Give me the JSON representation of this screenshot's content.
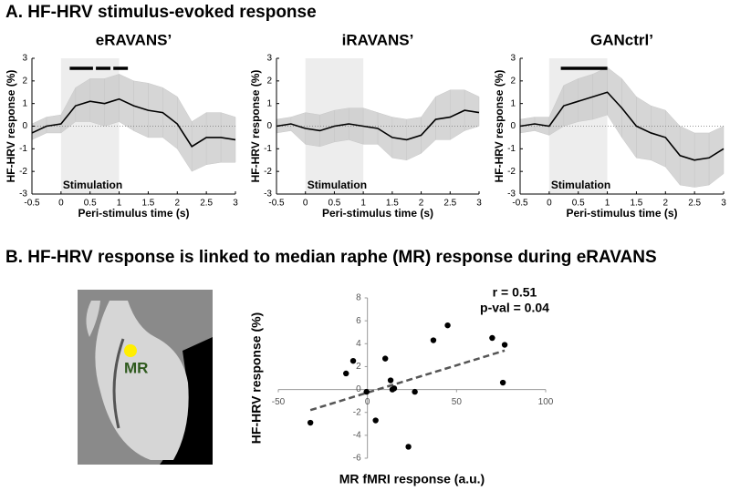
{
  "panels": [
    "A. HF-HRV stimulus-evoked response",
    "B. HF-HRV response is linked to median raphe (MR) response during eRAVANS"
  ],
  "image_label": "MR",
  "chart_data": [
    {
      "type": "band-line",
      "title": "eRAVANS’",
      "xlabel": "Peri-stimulus time (s)",
      "ylabel": "HF-HRV response (%)",
      "annotation": "Stimulation",
      "xlim": [
        -0.5,
        3
      ],
      "xticks": [
        -0.5,
        0,
        0.5,
        1,
        1.5,
        2,
        2.5,
        3
      ],
      "ylim": [
        -3,
        3
      ],
      "yticks": [
        -3,
        -2,
        -1,
        0,
        1,
        2,
        3
      ],
      "stim_window": [
        0,
        1
      ],
      "sig_segments": [
        [
          0.15,
          0.55
        ],
        [
          0.6,
          0.85
        ],
        [
          0.9,
          1.15
        ]
      ],
      "color": "#000000",
      "band_color": "#c8c8c8",
      "x": [
        -0.5,
        -0.25,
        0,
        0.25,
        0.5,
        0.75,
        1,
        1.25,
        1.5,
        1.75,
        2,
        2.25,
        2.5,
        2.75,
        3
      ],
      "values": [
        -0.3,
        0,
        0.1,
        0.9,
        1.1,
        1.0,
        1.2,
        0.9,
        0.7,
        0.6,
        0.1,
        -0.9,
        -0.5,
        -0.5,
        -0.6
      ],
      "upper": [
        0.1,
        0.4,
        0.5,
        1.7,
        2.1,
        2.1,
        2.3,
        2.0,
        1.9,
        1.7,
        1.3,
        0.2,
        0.6,
        0.6,
        0.4
      ],
      "lower": [
        -0.6,
        -0.3,
        -0.3,
        0.2,
        0.2,
        0,
        0.2,
        -0.2,
        -0.5,
        -0.5,
        -1,
        -2,
        -1.7,
        -1.6,
        -1.6
      ]
    },
    {
      "type": "band-line",
      "title": "iRAVANS’",
      "xlabel": "Peri-stimulus time (s)",
      "ylabel": "HF-HRV response (%)",
      "annotation": "Stimulation",
      "xlim": [
        -0.5,
        3
      ],
      "xticks": [
        -0.5,
        0,
        0.5,
        1,
        1.5,
        2,
        2.5,
        3
      ],
      "ylim": [
        -3,
        3
      ],
      "yticks": [
        -3,
        -2,
        -1,
        0,
        1,
        2,
        3
      ],
      "stim_window": [
        0,
        1
      ],
      "sig_segments": [],
      "color": "#000000",
      "band_color": "#c8c8c8",
      "x": [
        -0.5,
        -0.25,
        0,
        0.25,
        0.5,
        0.75,
        1,
        1.25,
        1.5,
        1.75,
        2,
        2.25,
        2.5,
        2.75,
        3
      ],
      "values": [
        0,
        0.1,
        -0.1,
        -0.2,
        0,
        0.1,
        0,
        -0.1,
        -0.5,
        -0.6,
        -0.4,
        0.3,
        0.4,
        0.7,
        0.6
      ],
      "upper": [
        0.3,
        0.4,
        0.6,
        0.5,
        0.7,
        0.8,
        0.8,
        0.6,
        0.4,
        0.3,
        0.4,
        1.3,
        1.6,
        1.6,
        1.3
      ],
      "lower": [
        -0.3,
        -0.2,
        -0.8,
        -0.9,
        -0.7,
        -0.6,
        -0.8,
        -0.8,
        -1.4,
        -1.5,
        -1.2,
        -0.6,
        -0.6,
        -0.2,
        0
      ]
    },
    {
      "type": "band-line",
      "title": "GANctrl’",
      "xlabel": "Peri-stimulus time (s)",
      "ylabel": "HF-HRV response (%)",
      "annotation": "Stimulation",
      "xlim": [
        -0.5,
        3
      ],
      "xticks": [
        -0.5,
        0,
        0.5,
        1,
        1.5,
        2,
        2.5,
        3
      ],
      "ylim": [
        -3,
        3
      ],
      "yticks": [
        -3,
        -2,
        -1,
        0,
        1,
        2,
        3
      ],
      "stim_window": [
        0,
        1
      ],
      "sig_segments": [
        [
          0.2,
          1.0
        ]
      ],
      "color": "#000000",
      "band_color": "#c8c8c8",
      "x": [
        -0.5,
        -0.25,
        0,
        0.25,
        0.5,
        0.75,
        1,
        1.25,
        1.5,
        1.75,
        2,
        2.25,
        2.5,
        2.75,
        3
      ],
      "values": [
        0,
        0.1,
        0,
        0.9,
        1.1,
        1.3,
        1.5,
        0.8,
        0,
        -0.3,
        -0.5,
        -1.3,
        -1.5,
        -1.4,
        -1.0
      ],
      "upper": [
        0.3,
        0.4,
        0.4,
        1.8,
        2.1,
        2.3,
        2.6,
        2.1,
        1.3,
        0.9,
        0.7,
        0,
        -0.3,
        -0.3,
        0
      ],
      "lower": [
        -0.3,
        -0.2,
        -0.4,
        0,
        0.2,
        0.3,
        0.5,
        -0.5,
        -1.4,
        -1.5,
        -1.8,
        -2.6,
        -2.7,
        -2.6,
        -2.1
      ]
    },
    {
      "type": "scatter",
      "xlabel": "MR fMRI response (a.u.)",
      "ylabel": "HF-HRV response (%)",
      "annotations": [
        "r = 0.51",
        "p-val = 0.04"
      ],
      "xlim": [
        -50,
        100
      ],
      "xticks": [
        -50,
        0,
        50,
        100
      ],
      "ylim": [
        -6,
        8
      ],
      "yticks": [
        -6,
        -4,
        -2,
        0,
        2,
        4,
        6,
        8
      ],
      "color": "#000000",
      "x": [
        -32,
        -12,
        -8,
        -0.5,
        4.6,
        10,
        13,
        14,
        15,
        26.6,
        23,
        37,
        45,
        70,
        77,
        76
      ],
      "y": [
        -2.9,
        1.4,
        2.5,
        -0.2,
        -2.7,
        2.7,
        0.8,
        0,
        0.1,
        -0.2,
        -5.0,
        4.3,
        5.6,
        4.5,
        3.9,
        0.6
      ],
      "fit_line": {
        "x": [
          -32,
          77
        ],
        "y": [
          -1.8,
          3.4
        ],
        "color": "#555555"
      }
    }
  ]
}
